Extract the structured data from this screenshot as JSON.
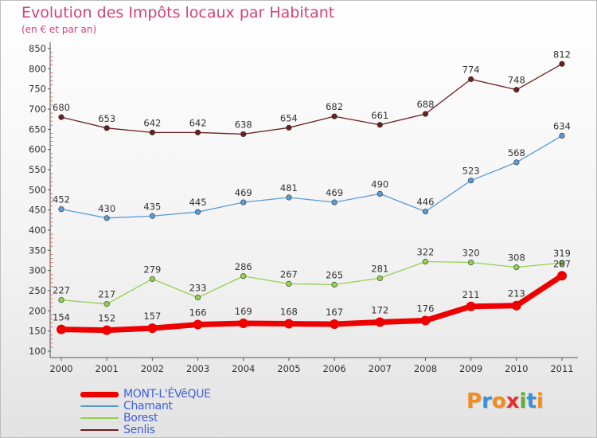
{
  "title": "Evolution des Impôts locaux par Habitant",
  "subtitle": "(en € et par an)",
  "logo_text": "Proxiti",
  "colors": {
    "title": "#d2427c",
    "legend_text": "#3f5fd6",
    "mont": "#ee0000",
    "chamant": "#5b9bd5",
    "borest": "#92d050",
    "senlis": "#6b1f1f"
  },
  "chart_data": {
    "type": "line",
    "title": "Evolution des Impôts locaux par Habitant",
    "subtitle": "(en € et par an)",
    "categories": [
      "2000",
      "2001",
      "2002",
      "2003",
      "2004",
      "2005",
      "2006",
      "2007",
      "2008",
      "2009",
      "2010",
      "2011"
    ],
    "ylim": [
      100,
      850
    ],
    "yticks": [
      100,
      150,
      200,
      250,
      300,
      350,
      400,
      450,
      500,
      550,
      600,
      650,
      700,
      750,
      800,
      850
    ],
    "grid": false,
    "legend_position": "bottom-left",
    "series": [
      {
        "name": "MONT-L'ÉVêQUE",
        "color": "#ee0000",
        "values": [
          154,
          152,
          157,
          166,
          169,
          168,
          167,
          172,
          176,
          211,
          213,
          287
        ]
      },
      {
        "name": "Chamant",
        "color": "#5b9bd5",
        "values": [
          452,
          430,
          435,
          445,
          469,
          481,
          469,
          490,
          446,
          523,
          568,
          634
        ]
      },
      {
        "name": "Borest",
        "color": "#92d050",
        "values": [
          227,
          217,
          279,
          233,
          286,
          267,
          265,
          281,
          322,
          320,
          308,
          319
        ]
      },
      {
        "name": "Senlis",
        "color": "#6b1f1f",
        "values": [
          680,
          653,
          642,
          642,
          638,
          654,
          682,
          661,
          688,
          774,
          748,
          812
        ]
      }
    ]
  }
}
